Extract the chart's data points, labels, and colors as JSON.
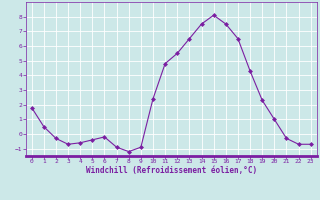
{
  "x": [
    0,
    1,
    2,
    3,
    4,
    5,
    6,
    7,
    8,
    9,
    10,
    11,
    12,
    13,
    14,
    15,
    16,
    17,
    18,
    19,
    20,
    21,
    22,
    23
  ],
  "y": [
    1.8,
    0.5,
    -0.3,
    -0.7,
    -0.6,
    -0.4,
    -0.2,
    -0.9,
    -1.2,
    -0.9,
    2.4,
    4.8,
    5.5,
    6.5,
    7.5,
    8.1,
    7.5,
    6.5,
    4.3,
    2.3,
    1.0,
    -0.3,
    -0.7,
    -0.7
  ],
  "line_color": "#7b1fa2",
  "marker": "D",
  "marker_size": 2,
  "bg_color": "#cce8e8",
  "grid_color": "#ffffff",
  "xlabel": "Windchill (Refroidissement éolien,°C)",
  "xlim": [
    -0.5,
    23.5
  ],
  "ylim": [
    -1.5,
    9.0
  ],
  "yticks": [
    -1,
    0,
    1,
    2,
    3,
    4,
    5,
    6,
    7,
    8
  ],
  "xticks": [
    0,
    1,
    2,
    3,
    4,
    5,
    6,
    7,
    8,
    9,
    10,
    11,
    12,
    13,
    14,
    15,
    16,
    17,
    18,
    19,
    20,
    21,
    22,
    23
  ],
  "tick_color": "#7b1fa2",
  "label_color": "#7b1fa2",
  "spine_color": "#7b1fa2",
  "tick_fontsize": 4.5,
  "xlabel_fontsize": 5.5
}
